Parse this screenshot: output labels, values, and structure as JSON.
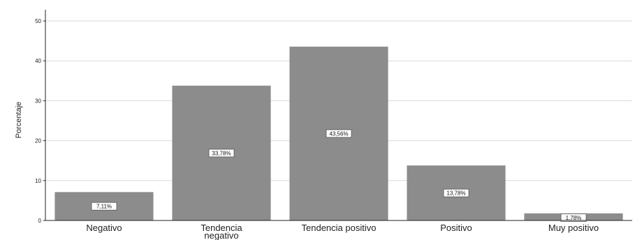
{
  "chart_data": {
    "type": "bar",
    "title": "",
    "xlabel": "",
    "ylabel": "Porcentaje",
    "ylim": [
      0,
      50
    ],
    "yticks": [
      0,
      10,
      20,
      30,
      40,
      50
    ],
    "grid": true,
    "categories": [
      [
        "Negativo"
      ],
      [
        "Tendencia",
        "negativo"
      ],
      [
        "Tendencia positivo"
      ],
      [
        "Positivo"
      ],
      [
        "Muy positivo"
      ]
    ],
    "values": [
      7.11,
      33.78,
      43.56,
      13.78,
      1.78
    ],
    "data_labels": [
      "7,11%",
      "33,78%",
      "43,56%",
      "13,78%",
      "1,78%"
    ],
    "colors": {
      "bar": "#8c8c8c",
      "grid": "#d9d9d9",
      "axis": "#222222",
      "label_box": "#ffffff"
    }
  }
}
